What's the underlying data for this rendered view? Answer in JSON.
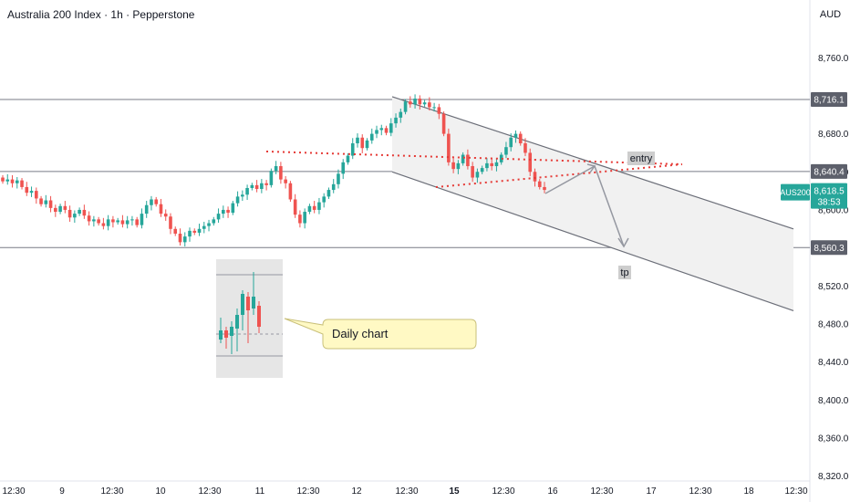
{
  "header": {
    "title": "Australia 200 Index · 1h · Pepperstone",
    "currency": "AUD"
  },
  "chart_data": {
    "type": "candlestick",
    "symbol": "AUS200",
    "last_price": "8,618.5",
    "countdown": "38:53",
    "y_axis": {
      "ticks": [
        "8,760.0",
        "8,680.0",
        "8,640.0",
        "8,600.0",
        "8,520.0",
        "8,480.0",
        "8,440.0",
        "8,400.0",
        "8,360.0",
        "8,320.0"
      ],
      "tick_values": [
        8760,
        8680,
        8640,
        8600,
        8520,
        8480,
        8440,
        8400,
        8360,
        8320
      ],
      "range": [
        8312,
        8790
      ]
    },
    "x_axis": {
      "ticks": [
        "12:30",
        "9",
        "12:30",
        "10",
        "12:30",
        "11",
        "12:30",
        "12",
        "12:30",
        "15",
        "12:30",
        "16",
        "12:30",
        "17",
        "12:30",
        "18",
        "12:30"
      ],
      "bold_index": 9
    },
    "levels": [
      {
        "label": "8,716.1",
        "value": 8716.1
      },
      {
        "label": "8,640.4",
        "value": 8640.4
      },
      {
        "label": "8,560.3",
        "value": 8560.3
      }
    ],
    "annotations": {
      "entry": "entry",
      "tp": "tp",
      "callout": "Daily chart"
    },
    "candle_colors": {
      "up": "#26a69a",
      "down": "#ef5350"
    },
    "candle_closes": [
      8630,
      8632,
      8628,
      8631,
      8624,
      8618,
      8620,
      8612,
      8606,
      8610,
      8602,
      8598,
      8604,
      8600,
      8592,
      8596,
      8600,
      8594,
      8588,
      8590,
      8586,
      8583,
      8590,
      8587,
      8589,
      8585,
      8589,
      8590,
      8584,
      8596,
      8605,
      8611,
      8606,
      8596,
      8593,
      8580,
      8575,
      8566,
      8572,
      8578,
      8576,
      8580,
      8583,
      8586,
      8590,
      8596,
      8600,
      8597,
      8607,
      8614,
      8616,
      8623,
      8626,
      8622,
      8628,
      8626,
      8641,
      8646,
      8632,
      8628,
      8611,
      8595,
      8586,
      8598,
      8604,
      8600,
      8608,
      8614,
      8621,
      8627,
      8638,
      8650,
      8657,
      8670,
      8676,
      8665,
      8673,
      8680,
      8684,
      8686,
      8681,
      8691,
      8697,
      8703,
      8714,
      8711,
      8717,
      8711,
      8713,
      8708,
      8708,
      8701,
      8680,
      8650,
      8643,
      8649,
      8658,
      8646,
      8634,
      8640,
      8644,
      8649,
      8646,
      8650,
      8658,
      8666,
      8676,
      8680,
      8670,
      8660,
      8640,
      8630,
      8624,
      8621
    ]
  }
}
